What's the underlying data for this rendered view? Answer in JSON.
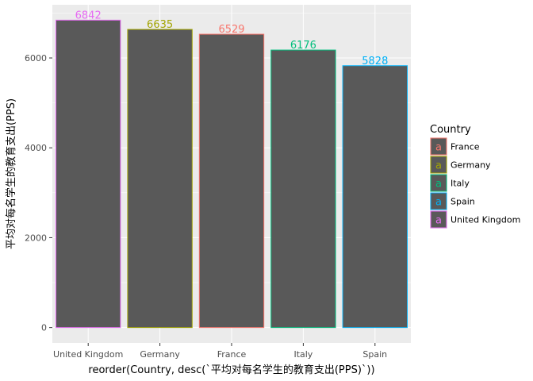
{
  "chart_data": {
    "type": "bar",
    "categories": [
      "United Kingdom",
      "Germany",
      "France",
      "Italy",
      "Spain"
    ],
    "values": [
      6842,
      6635,
      6529,
      6176,
      5828
    ],
    "data_labels": [
      "6842",
      "6635",
      "6529",
      "6176",
      "5828"
    ],
    "bar_outline_colors": [
      "#E76BF3",
      "#A3A500",
      "#F8766D",
      "#00BF7D",
      "#00B0F6"
    ],
    "bar_fill_color": "#595959",
    "xlabel": "reorder(Country, desc(`平均对每名学生的教育支出(PPS)`))",
    "ylabel": "平均对每名学生的教育支出(PPS)",
    "yticks": [
      0,
      2000,
      4000,
      6000
    ],
    "ytick_labels": [
      "0",
      "2000",
      "4000",
      "6000"
    ],
    "ylim": [
      -342,
      7184
    ],
    "grid": true,
    "panel_background": "#EBEBEB",
    "legend": {
      "title": "Country",
      "position": "right",
      "key_glyph": "a",
      "items": [
        {
          "label": "France",
          "color": "#F8766D"
        },
        {
          "label": "Germany",
          "color": "#A3A500"
        },
        {
          "label": "Italy",
          "color": "#00BF7D"
        },
        {
          "label": "Spain",
          "color": "#00B0F6"
        },
        {
          "label": "United Kingdom",
          "color": "#E76BF3"
        }
      ]
    }
  }
}
